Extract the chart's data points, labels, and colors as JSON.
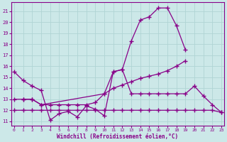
{
  "xlabel": "Windchill (Refroidissement éolien,°C)",
  "background_color": "#cce8e8",
  "grid_color": "#b0d4d4",
  "line_color": "#880088",
  "hours": [
    0,
    1,
    2,
    3,
    4,
    5,
    6,
    7,
    8,
    9,
    10,
    11,
    12,
    13,
    14,
    15,
    16,
    17,
    18,
    19,
    20,
    21,
    22,
    23
  ],
  "line1_y": [
    15.5,
    14.7,
    14.2,
    13.8,
    11.1,
    11.7,
    11.9,
    11.4,
    12.4,
    12.1,
    11.5,
    15.5,
    15.7,
    13.5,
    13.5,
    13.5,
    13.5,
    13.5,
    13.5,
    13.5,
    14.2,
    13.3,
    12.5,
    11.8
  ],
  "line2_y": [
    null,
    13.0,
    13.0,
    12.5,
    null,
    null,
    null,
    null,
    null,
    null,
    13.5,
    15.5,
    15.7,
    18.3,
    20.2,
    20.5,
    21.3,
    21.3,
    19.7,
    17.5,
    null,
    null,
    null,
    null
  ],
  "line3_y": [
    13.0,
    13.0,
    13.0,
    12.5,
    12.5,
    12.5,
    12.5,
    12.5,
    12.5,
    12.7,
    13.5,
    14.0,
    14.3,
    14.6,
    14.9,
    15.1,
    15.3,
    15.6,
    16.0,
    16.5,
    null,
    null,
    null,
    null
  ],
  "line4_y": [
    12.0,
    12.0,
    12.0,
    12.0,
    12.0,
    12.0,
    12.0,
    12.0,
    12.0,
    12.0,
    12.0,
    12.0,
    12.0,
    12.0,
    12.0,
    12.0,
    12.0,
    12.0,
    12.0,
    12.0,
    12.0,
    12.0,
    12.0,
    11.8
  ],
  "ylim": [
    10.6,
    21.8
  ],
  "yticks": [
    11,
    12,
    13,
    14,
    15,
    16,
    17,
    18,
    19,
    20,
    21
  ],
  "xlim": [
    -0.3,
    23.3
  ]
}
